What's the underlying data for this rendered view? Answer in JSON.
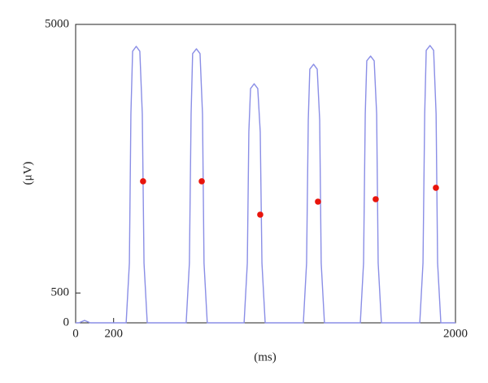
{
  "chart_data": [
    {
      "type": "line",
      "xlabel": "(ms)",
      "ylabel": "(μV)",
      "xlim": [
        0,
        2000
      ],
      "ylim": [
        0,
        5000
      ],
      "xticks": [
        0,
        200,
        2000
      ],
      "yticks": [
        0,
        500,
        5000
      ],
      "x": [
        0,
        17,
        47,
        77,
        266,
        283,
        291,
        300,
        319,
        338,
        351,
        360,
        377,
        582,
        599,
        608,
        616,
        636,
        655,
        668,
        676,
        693,
        887,
        904,
        912,
        921,
        940,
        959,
        972,
        981,
        998,
        1199,
        1216,
        1225,
        1233,
        1253,
        1272,
        1285,
        1293,
        1310,
        1499,
        1516,
        1525,
        1533,
        1553,
        1572,
        1585,
        1593,
        1610,
        1812,
        1829,
        1838,
        1846,
        1866,
        1885,
        1898,
        1906,
        1923,
        2000
      ],
      "series": [
        {
          "color": "#8a8ee6",
          "values": [
            0,
            0,
            40,
            0,
            0,
            1000,
            3500,
            4550,
            4632,
            4550,
            3500,
            1000,
            0,
            0,
            1000,
            3500,
            4510,
            4591,
            4510,
            3500,
            1000,
            0,
            0,
            1000,
            3200,
            3925,
            4005,
            3925,
            3200,
            1000,
            0,
            0,
            1000,
            3400,
            4250,
            4332,
            4250,
            3400,
            1000,
            0,
            0,
            1000,
            3500,
            4390,
            4469,
            4390,
            3500,
            1000,
            0,
            0,
            1000,
            3500,
            4565,
            4646,
            4565,
            3500,
            1000,
            0,
            0
          ]
        }
      ]
    },
    {
      "type": "scatter",
      "color": "#e8140c",
      "x": [
        355,
        664,
        972,
        1276,
        1580,
        1897
      ],
      "values": [
        2371,
        2371,
        1812,
        2030,
        2071,
        2262
      ]
    }
  ]
}
